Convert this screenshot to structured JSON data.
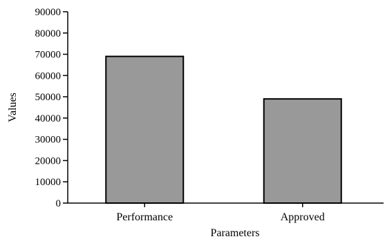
{
  "chart_data": {
    "type": "bar",
    "title": "",
    "xlabel": "Parameters",
    "ylabel": "Values",
    "categories": [
      "Performance",
      "Approved"
    ],
    "values": [
      69000,
      49000
    ],
    "ylim": [
      0,
      90000
    ],
    "yticks": [
      0,
      10000,
      20000,
      30000,
      40000,
      50000,
      60000,
      70000,
      80000,
      90000
    ],
    "grid": false,
    "legend": "none",
    "bar_color": "#999999",
    "bar_edge_color": "#000000"
  }
}
